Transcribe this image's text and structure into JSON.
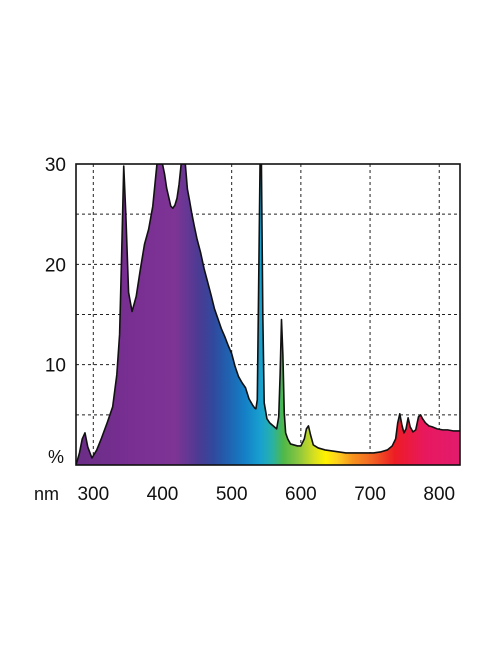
{
  "chart_data": {
    "type": "area",
    "title": "",
    "xlabel": "nm",
    "ylabel": "%",
    "xlim": [
      275,
      830
    ],
    "ylim": [
      0,
      30
    ],
    "grid": true,
    "grid_style": "dashed",
    "fill": "visible-spectrum-gradient",
    "line_color": "#111111",
    "x_ticks": [
      300,
      400,
      500,
      600,
      700,
      800
    ],
    "x_tick_labels": [
      "300",
      "400",
      "500",
      "600",
      "700",
      "800"
    ],
    "y_ticks": [
      10,
      20,
      30
    ],
    "y_tick_labels": [
      "10",
      "20",
      "30"
    ],
    "y_unit_label": "%",
    "x_unit_label": "nm",
    "series": [
      {
        "x": [
          275,
          280,
          284,
          288,
          292,
          298,
          305,
          312,
          320,
          328,
          334,
          338,
          341,
          344,
          347,
          351,
          356,
          362,
          368,
          374,
          380,
          386,
          392,
          396,
          400,
          403,
          406,
          409,
          412,
          415,
          418,
          421,
          424,
          427,
          430,
          433,
          436,
          439,
          442,
          446,
          450,
          455,
          460,
          465,
          470,
          475,
          480,
          485,
          490,
          495,
          500,
          505,
          510,
          515,
          520,
          525,
          530,
          533,
          535,
          537,
          539,
          541,
          543,
          545,
          547,
          549,
          551,
          555,
          560,
          565,
          568,
          570,
          572,
          574,
          576,
          578,
          581,
          585,
          590,
          595,
          600,
          605,
          608,
          611,
          614,
          618,
          625,
          635,
          645,
          655,
          665,
          675,
          685,
          695,
          705,
          715,
          725,
          732,
          737,
          740,
          743,
          746,
          749,
          752,
          755,
          758,
          762,
          766,
          770,
          773,
          776,
          780,
          785,
          790,
          797,
          805,
          812,
          820,
          826,
          830
        ],
        "y": [
          0,
          1.2,
          2.6,
          3.2,
          1.8,
          0.7,
          1.5,
          2.7,
          4.2,
          5.8,
          9,
          13,
          21,
          29.8,
          25,
          17.2,
          15.3,
          16.8,
          19.5,
          22,
          23.5,
          25.8,
          30,
          30,
          30,
          29,
          27.6,
          26.7,
          25.8,
          25.6,
          25.9,
          26.6,
          28,
          30,
          30,
          30,
          27.5,
          26.4,
          25.2,
          23.8,
          22.5,
          21.2,
          19.6,
          18.3,
          17,
          15.6,
          14.6,
          13.6,
          12.8,
          11.9,
          11.1,
          9.8,
          8.8,
          8.2,
          7.7,
          6.6,
          6.0,
          5.7,
          5.6,
          6.5,
          18,
          30,
          30,
          15,
          6.2,
          5.4,
          4.6,
          4.2,
          3.9,
          3.6,
          4.8,
          9,
          14.5,
          11,
          5.2,
          3.2,
          2.6,
          2.1,
          2.0,
          1.9,
          1.9,
          2.6,
          3.6,
          3.9,
          3.0,
          2.0,
          1.7,
          1.5,
          1.4,
          1.3,
          1.2,
          1.2,
          1.2,
          1.2,
          1.2,
          1.3,
          1.5,
          1.9,
          2.6,
          4.2,
          5.1,
          4.0,
          3.2,
          3.6,
          4.7,
          3.8,
          3.3,
          3.5,
          4.8,
          5.0,
          4.6,
          4.2,
          3.9,
          3.8,
          3.6,
          3.5,
          3.5,
          3.4,
          3.4,
          3.4
        ]
      }
    ]
  }
}
